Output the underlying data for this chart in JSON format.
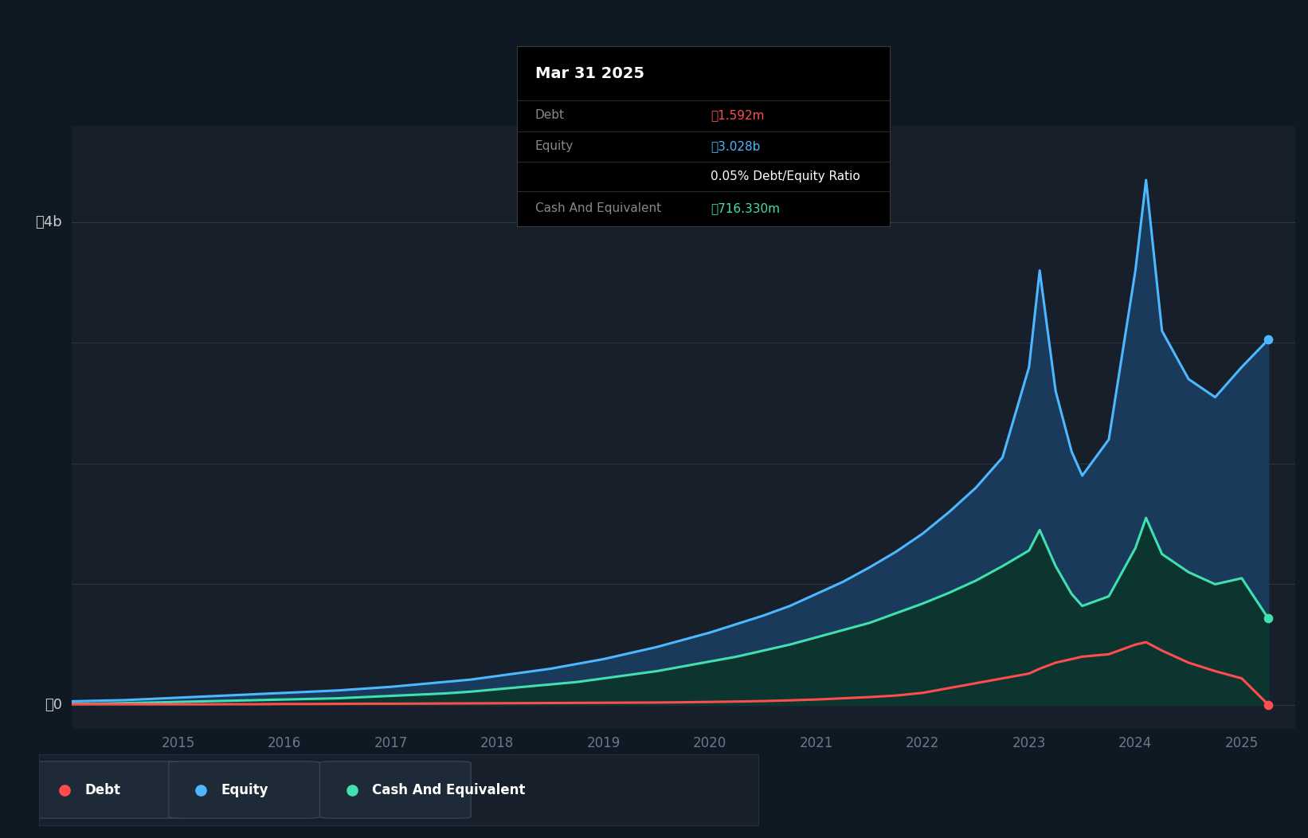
{
  "background_color": "#131c26",
  "plot_bg_color": "#161f2a",
  "outer_bg_color": "#0f1923",
  "grid_color": "#2a3a4a",
  "tooltip_title": "Mar 31 2025",
  "tooltip_rows": [
    {
      "label": "Debt",
      "value": "₼1.592m",
      "value_color": "#ff4d4d"
    },
    {
      "label": "Equity",
      "value": "₼3.028b",
      "value_color": "#4db8ff"
    },
    {
      "label": "",
      "value": "0.05% Debt/Equity Ratio",
      "value_color": "#ffffff"
    },
    {
      "label": "Cash And Equivalent",
      "value": "₼716.330m",
      "value_color": "#40e0b0"
    }
  ],
  "ylabel_top": "₼4b",
  "ylabel_zero": "₼0",
  "legend": [
    {
      "label": "Debt",
      "color": "#ff4d4d"
    },
    {
      "label": "Equity",
      "color": "#4db8ff"
    },
    {
      "label": "Cash And Equivalent",
      "color": "#40e0b0"
    }
  ],
  "equity_color": "#4db8ff",
  "equity_fill_color": "#1a3a5c",
  "debt_color": "#ff4d4d",
  "cash_color": "#40e0b0",
  "cash_fill_color": "#0d3530",
  "line_width": 2.2,
  "time_points": [
    2014.0,
    2014.25,
    2014.5,
    2014.75,
    2015.0,
    2015.25,
    2015.5,
    2015.75,
    2016.0,
    2016.25,
    2016.5,
    2016.75,
    2017.0,
    2017.25,
    2017.5,
    2017.75,
    2018.0,
    2018.25,
    2018.5,
    2018.75,
    2019.0,
    2019.25,
    2019.5,
    2019.75,
    2020.0,
    2020.25,
    2020.5,
    2020.75,
    2021.0,
    2021.25,
    2021.5,
    2021.75,
    2022.0,
    2022.25,
    2022.5,
    2022.75,
    2023.0,
    2023.1,
    2023.25,
    2023.4,
    2023.5,
    2023.75,
    2024.0,
    2024.1,
    2024.25,
    2024.5,
    2024.75,
    2025.0,
    2025.25
  ],
  "equity_values": [
    0.03,
    0.035,
    0.04,
    0.05,
    0.06,
    0.07,
    0.08,
    0.09,
    0.1,
    0.11,
    0.12,
    0.135,
    0.15,
    0.17,
    0.19,
    0.21,
    0.24,
    0.27,
    0.3,
    0.34,
    0.38,
    0.43,
    0.48,
    0.54,
    0.6,
    0.67,
    0.74,
    0.82,
    0.92,
    1.02,
    1.14,
    1.27,
    1.42,
    1.6,
    1.8,
    2.05,
    2.8,
    3.6,
    2.6,
    2.1,
    1.9,
    2.2,
    3.6,
    4.35,
    3.1,
    2.7,
    2.55,
    2.8,
    3.028
  ],
  "cash_values": [
    0.01,
    0.01,
    0.015,
    0.02,
    0.025,
    0.03,
    0.035,
    0.04,
    0.045,
    0.05,
    0.055,
    0.065,
    0.075,
    0.085,
    0.095,
    0.11,
    0.13,
    0.15,
    0.17,
    0.19,
    0.22,
    0.25,
    0.28,
    0.32,
    0.36,
    0.4,
    0.45,
    0.5,
    0.56,
    0.62,
    0.68,
    0.76,
    0.84,
    0.93,
    1.03,
    1.15,
    1.28,
    1.45,
    1.15,
    0.92,
    0.82,
    0.9,
    1.3,
    1.55,
    1.25,
    1.1,
    1.0,
    1.05,
    0.716
  ],
  "debt_values": [
    0.005,
    0.005,
    0.005,
    0.005,
    0.005,
    0.005,
    0.006,
    0.006,
    0.008,
    0.008,
    0.009,
    0.01,
    0.01,
    0.011,
    0.012,
    0.013,
    0.014,
    0.015,
    0.016,
    0.017,
    0.018,
    0.019,
    0.02,
    0.022,
    0.025,
    0.028,
    0.032,
    0.038,
    0.045,
    0.055,
    0.065,
    0.078,
    0.1,
    0.14,
    0.18,
    0.22,
    0.26,
    0.3,
    0.35,
    0.38,
    0.4,
    0.42,
    0.5,
    0.52,
    0.45,
    0.35,
    0.28,
    0.22,
    0.001592
  ],
  "ylim": [
    -0.2,
    4.8
  ],
  "xlim": [
    2014.0,
    2025.5
  ],
  "x_ticks": [
    2015.0,
    2016.0,
    2017.0,
    2018.0,
    2019.0,
    2020.0,
    2021.0,
    2022.0,
    2023.0,
    2024.0,
    2025.0
  ]
}
